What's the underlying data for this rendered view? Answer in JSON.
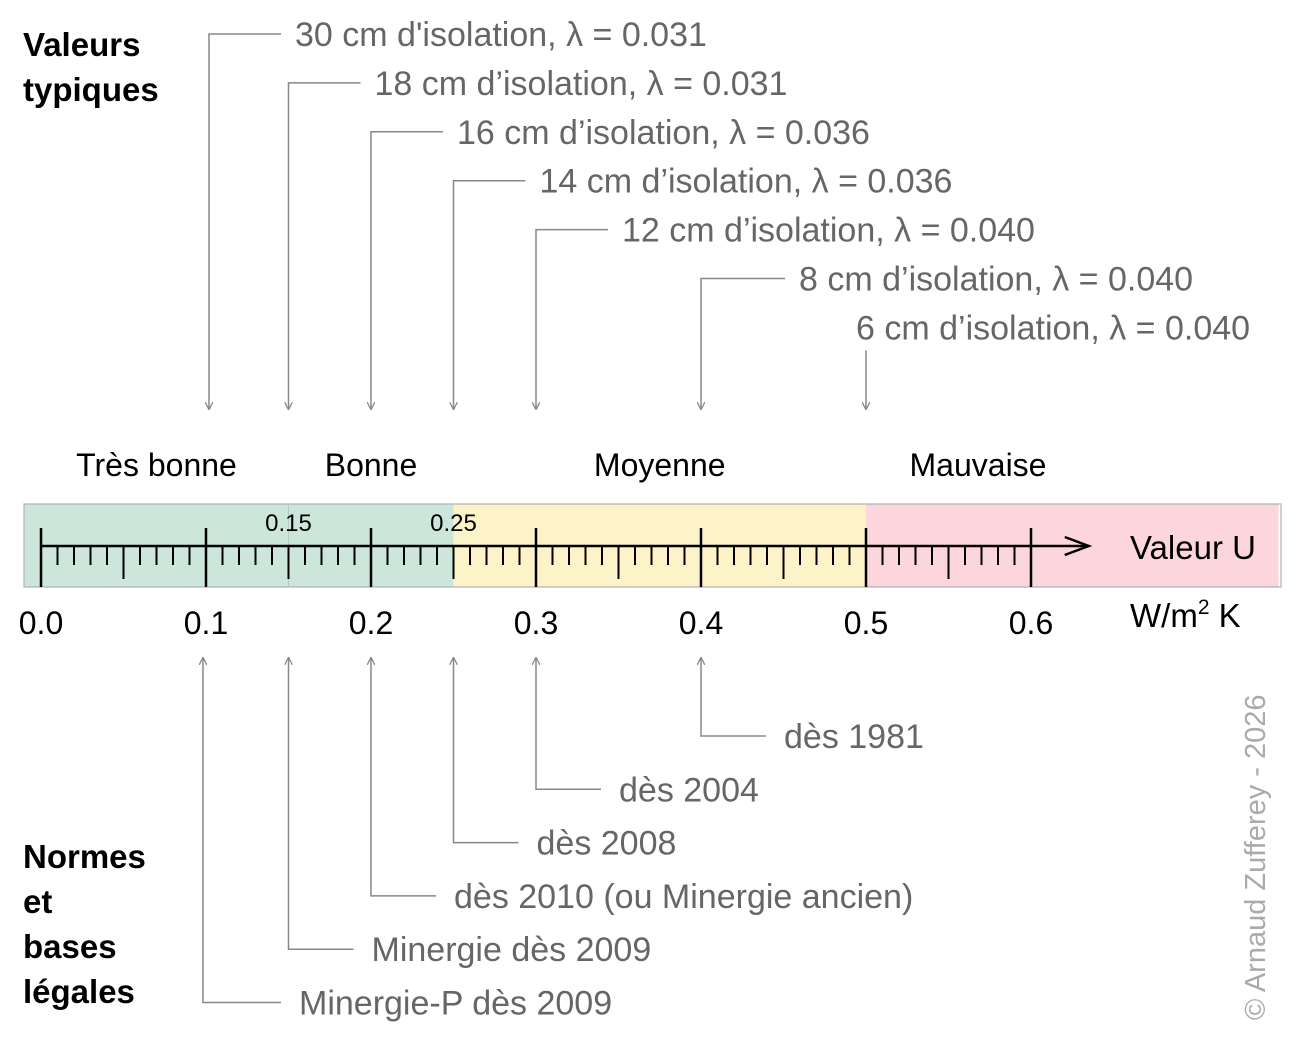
{
  "headings": {
    "top": [
      "Valeurs",
      "typiques"
    ],
    "bottom": [
      "Normes",
      "et",
      "bases",
      "légales"
    ]
  },
  "scale": {
    "min": 0.0,
    "max": 0.65,
    "arrow_end_value": 0.635,
    "major_ticks": [
      0.0,
      0.1,
      0.2,
      0.3,
      0.4,
      0.5,
      0.6
    ],
    "major_tick_labels": [
      "0.0",
      "0.1",
      "0.2",
      "0.3",
      "0.4",
      "0.5",
      "0.6"
    ],
    "minor_step": 0.01,
    "mid_step": 0.05,
    "axis_label": "Valeur U",
    "unit_main": "W/m",
    "unit_sup": "2",
    "unit_tail": " K",
    "boundary_labels": [
      {
        "value": 0.15,
        "label": "0.15"
      },
      {
        "value": 0.25,
        "label": "0.25"
      }
    ]
  },
  "zones": [
    {
      "name": "Très bonne",
      "from": -0.01,
      "to": 0.15,
      "color": "#cde6db"
    },
    {
      "name": "Bonne",
      "from": 0.15,
      "to": 0.25,
      "color": "#cde6db"
    },
    {
      "name": "Moyenne",
      "from": 0.25,
      "to": 0.5,
      "color": "#fdf3c8"
    },
    {
      "name": "Mauvaise",
      "from": 0.5,
      "to": 0.75,
      "color": "#fdd5dc"
    }
  ],
  "typical_values": [
    {
      "value": 0.1,
      "label": "30 cm d'isolation, λ = 0.031"
    },
    {
      "value": 0.15,
      "label": "18 cm d’isolation, λ = 0.031"
    },
    {
      "value": 0.2,
      "label": "16  cm d’isolation, λ = 0.036"
    },
    {
      "value": 0.25,
      "label": "14  cm d’isolation, λ = 0.036"
    },
    {
      "value": 0.3,
      "label": "12  cm d’isolation, λ = 0.040"
    },
    {
      "value": 0.4,
      "label": "8  cm d’isolation, λ = 0.040"
    },
    {
      "value": 0.5,
      "label": "6  cm d’isolation, λ = 0.040"
    }
  ],
  "norms": [
    {
      "value": 0.4,
      "label": "dès 1981"
    },
    {
      "value": 0.3,
      "label": "dès 2004"
    },
    {
      "value": 0.25,
      "label": "dès 2008"
    },
    {
      "value": 0.2,
      "label": "dès 2010 (ou Minergie ancien)"
    },
    {
      "value": 0.15,
      "label": "Minergie dès 2009"
    },
    {
      "value": 0.1,
      "label": "Minergie-P dès 2009"
    }
  ],
  "copyright": "© Arnaud Zufferey - 2026",
  "colors": {
    "connector": "#888888",
    "grey_text": "#666666",
    "border": "#b0b0b0"
  }
}
